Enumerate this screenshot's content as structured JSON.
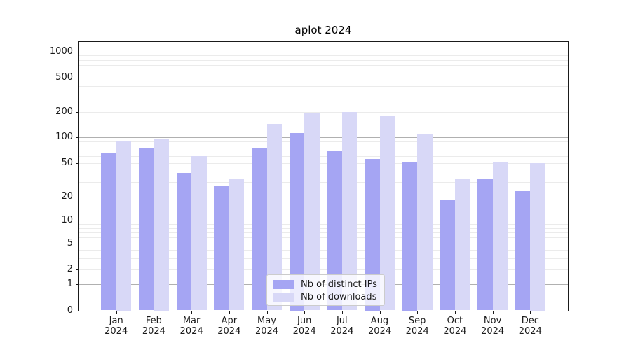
{
  "chart_data": {
    "type": "bar",
    "title": "aplot 2024",
    "categories": [
      "Jan",
      "Feb",
      "Mar",
      "Apr",
      "May",
      "Jun",
      "Jul",
      "Aug",
      "Sep",
      "Oct",
      "Nov",
      "Dec"
    ],
    "category_year": "2024",
    "series": [
      {
        "name": "Nb of distinct IPs",
        "color": "#a5a5f3",
        "values": [
          65,
          75,
          38,
          27,
          76,
          114,
          70,
          56,
          51,
          18,
          32,
          23
        ]
      },
      {
        "name": "Nb of downloads",
        "color": "#d8d8f7",
        "values": [
          90,
          98,
          60,
          33,
          143,
          194,
          200,
          180,
          108,
          33,
          52,
          50
        ]
      }
    ],
    "yscale": "log1p",
    "yticks": [
      0,
      1,
      2,
      5,
      10,
      20,
      50,
      100,
      200,
      500,
      1000
    ],
    "major_grid_values": [
      1,
      10,
      100,
      1000
    ],
    "ylim": [
      0,
      1290
    ],
    "xlabel": "",
    "ylabel": "",
    "grid": true,
    "legend": {
      "position": "lower center",
      "framealpha": 0.8
    },
    "colors": {
      "bar_dark": "#a5a5f3",
      "bar_light": "#d8d8f7",
      "grid_major": "#b0b0b0",
      "grid_minor": "#ebebeb",
      "spine": "#1a1a1a",
      "text": "#1a1a1a"
    }
  }
}
